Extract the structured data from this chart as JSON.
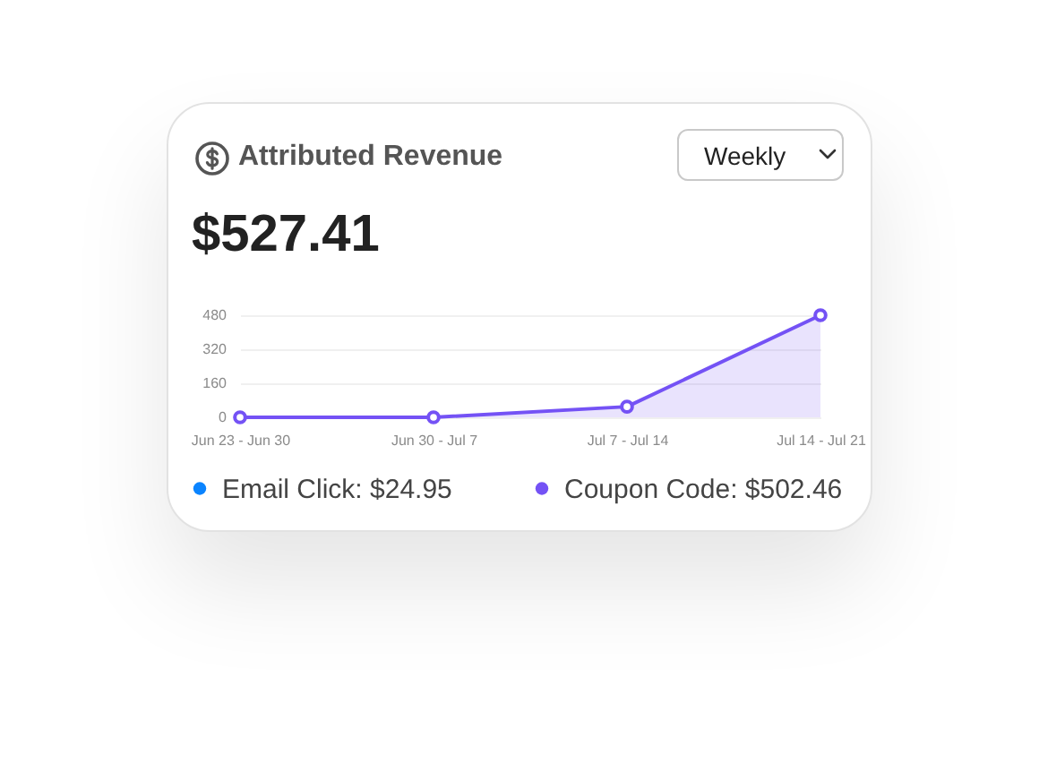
{
  "chart_data": {
    "type": "area",
    "title": "Attributed Revenue",
    "subtitle": "$527.41",
    "annotations": [
      "Weekly"
    ],
    "categories": [
      "Jun 23 - Jun 30",
      "Jun 30 - Jul 7",
      "Jul 7 - Jul 14",
      "Jul 14 - Jul 21"
    ],
    "series": [
      {
        "name": "Email Click: $24.95",
        "color": "#0a84ff",
        "values": [
          null,
          null,
          null,
          null
        ]
      },
      {
        "name": "Coupon Code: $502.46",
        "color": "#7452f5",
        "values": [
          0,
          0,
          50,
          480
        ]
      }
    ],
    "ylim": [
      0,
      480
    ],
    "yticks": [
      0,
      160,
      320,
      480
    ],
    "grid": "y",
    "legend": "bottom",
    "marker": "circle"
  }
}
